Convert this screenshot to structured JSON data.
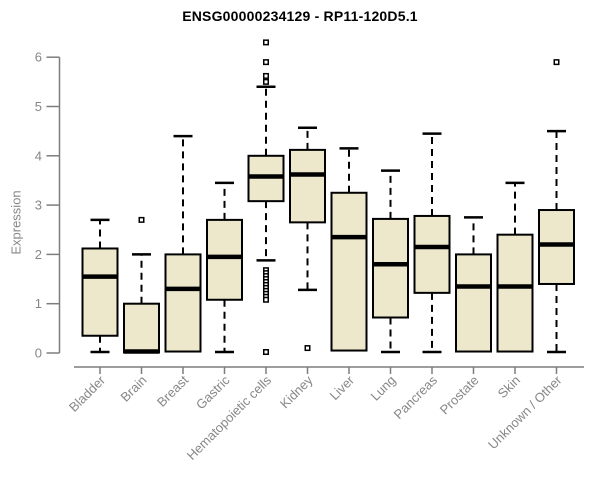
{
  "chart_data": {
    "type": "boxplot",
    "title": "ENSG00000234129 - RP11-120D5.1",
    "ylabel": "Expression",
    "ylim": [
      0,
      6
    ],
    "yticks": [
      0,
      1,
      2,
      3,
      4,
      5,
      6
    ],
    "grid": false,
    "legend": null,
    "categories": [
      "Bladder",
      "Brain",
      "Breast",
      "Gastric",
      "Hematopoietic cells",
      "Kidney",
      "Liver",
      "Lung",
      "Pancreas",
      "Prostate",
      "Skin",
      "Unknown / Other"
    ],
    "series": [
      {
        "category": "Bladder",
        "slug": "bladder",
        "whisker_low": 0.02,
        "q1": 0.35,
        "median": 1.55,
        "q3": 2.12,
        "whisker_high": 2.7,
        "outliers": []
      },
      {
        "category": "Brain",
        "slug": "brain",
        "whisker_low": 0.0,
        "q1": 0.01,
        "median": 0.03,
        "q3": 1.0,
        "whisker_high": 2.0,
        "outliers": [
          2.7
        ]
      },
      {
        "category": "Breast",
        "slug": "breast",
        "whisker_low": 0.02,
        "q1": 0.03,
        "median": 1.3,
        "q3": 2.0,
        "whisker_high": 4.4,
        "outliers": []
      },
      {
        "category": "Gastric",
        "slug": "gastric",
        "whisker_low": 0.02,
        "q1": 1.08,
        "median": 1.95,
        "q3": 2.7,
        "whisker_high": 3.45,
        "outliers": []
      },
      {
        "category": "Hematopoietic cells",
        "slug": "hematopoietic-cells",
        "whisker_low": 1.88,
        "q1": 3.08,
        "median": 3.58,
        "q3": 4.0,
        "whisker_high": 5.4,
        "outliers": [
          6.3,
          5.9,
          5.62,
          5.5,
          1.68,
          1.62,
          1.56,
          1.5,
          1.44,
          1.38,
          1.32,
          1.26,
          1.2,
          1.14,
          1.08,
          0.02
        ]
      },
      {
        "category": "Kidney",
        "slug": "kidney",
        "whisker_low": 1.28,
        "q1": 2.65,
        "median": 3.62,
        "q3": 4.12,
        "whisker_high": 4.57,
        "outliers": [
          0.1
        ]
      },
      {
        "category": "Liver",
        "slug": "liver",
        "whisker_low": 0.02,
        "q1": 0.05,
        "median": 2.35,
        "q3": 3.25,
        "whisker_high": 4.15,
        "outliers": []
      },
      {
        "category": "Lung",
        "slug": "lung",
        "whisker_low": 0.02,
        "q1": 0.72,
        "median": 1.8,
        "q3": 2.72,
        "whisker_high": 3.7,
        "outliers": []
      },
      {
        "category": "Pancreas",
        "slug": "pancreas",
        "whisker_low": 0.02,
        "q1": 1.22,
        "median": 2.15,
        "q3": 2.78,
        "whisker_high": 4.45,
        "outliers": []
      },
      {
        "category": "Prostate",
        "slug": "prostate",
        "whisker_low": 0.02,
        "q1": 0.03,
        "median": 1.35,
        "q3": 2.0,
        "whisker_high": 2.75,
        "outliers": []
      },
      {
        "category": "Skin",
        "slug": "skin",
        "whisker_low": 0.02,
        "q1": 0.03,
        "median": 1.35,
        "q3": 2.4,
        "whisker_high": 3.45,
        "outliers": []
      },
      {
        "category": "Unknown / Other",
        "slug": "unknown-other",
        "whisker_low": 0.02,
        "q1": 1.4,
        "median": 2.2,
        "q3": 2.9,
        "whisker_high": 4.5,
        "outliers": [
          5.9
        ]
      }
    ],
    "colors": {
      "box_fill": "#EDE8CC",
      "box_border": "#000000",
      "median": "#000000",
      "whisker": "#000000",
      "outlier": "#000000",
      "axis": "#7d7d7d",
      "tick_label": "#878787",
      "title": "#000000",
      "background": "#ffffff"
    }
  }
}
